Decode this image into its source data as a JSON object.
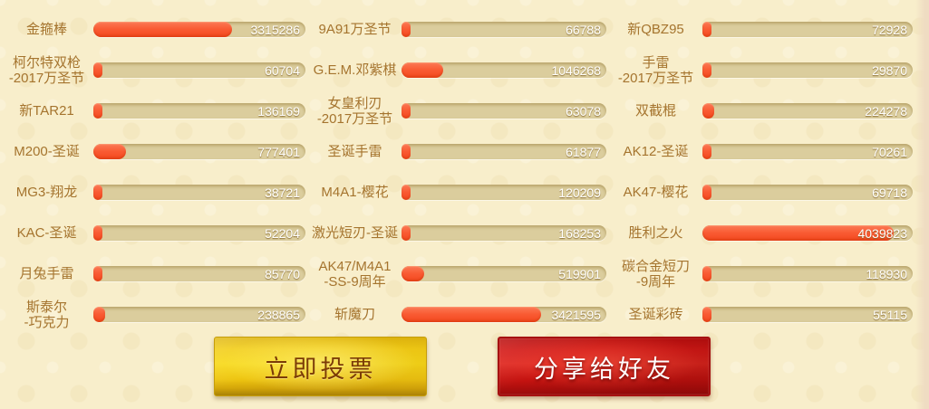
{
  "colors": {
    "background": "#f8eecb",
    "bar_track": "#dbcd9d",
    "bar_fill": "#f95a32",
    "label_text": "#a5742e",
    "count_text": "#ffffff",
    "vote_button_bg": "#f2cd15",
    "vote_button_text": "#7c3c05",
    "share_button_bg": "#d41a17",
    "share_button_text": "#ffffff"
  },
  "buttons": {
    "vote_label": "立即投票",
    "share_label": "分享给好友"
  },
  "columns": [
    {
      "items": [
        {
          "label": "金箍棒",
          "votes": "3315286",
          "fill_pct": 65.5
        },
        {
          "label": "柯尔特双枪\n-2017万圣节",
          "votes": "60704",
          "fill_pct": 3
        },
        {
          "label": "新TAR21",
          "votes": "136169",
          "fill_pct": 4
        },
        {
          "label": "M200-圣诞",
          "votes": "777401",
          "fill_pct": 15.4
        },
        {
          "label": "MG3-翔龙",
          "votes": "38721",
          "fill_pct": 3
        },
        {
          "label": "KAC-圣诞",
          "votes": "52204",
          "fill_pct": 3
        },
        {
          "label": "月兔手雷",
          "votes": "85770",
          "fill_pct": 3.5
        },
        {
          "label": "斯泰尔\n-巧克力",
          "votes": "238865",
          "fill_pct": 5.5
        }
      ]
    },
    {
      "items": [
        {
          "label": "9A91万圣节",
          "votes": "66788",
          "fill_pct": 3
        },
        {
          "label": "G.E.M.邓紫棋",
          "votes": "1046268",
          "fill_pct": 20.5
        },
        {
          "label": "女皇利刃\n-2017万圣节",
          "votes": "63078",
          "fill_pct": 3
        },
        {
          "label": "圣诞手雷",
          "votes": "61877",
          "fill_pct": 3
        },
        {
          "label": "M4A1-樱花",
          "votes": "120209",
          "fill_pct": 3.5
        },
        {
          "label": "激光短刃-圣诞",
          "votes": "168253",
          "fill_pct": 4.5
        },
        {
          "label": "AK47/M4A1\n-SS-9周年",
          "votes": "519901",
          "fill_pct": 11
        },
        {
          "label": "斩魔刀",
          "votes": "3421595",
          "fill_pct": 68
        }
      ]
    },
    {
      "items": [
        {
          "label": "新QBZ95",
          "votes": "72928",
          "fill_pct": 3.5
        },
        {
          "label": "手雷\n-2017万圣节",
          "votes": "29870",
          "fill_pct": 3
        },
        {
          "label": "双截棍",
          "votes": "224278",
          "fill_pct": 5.5
        },
        {
          "label": "AK12-圣诞",
          "votes": "70261",
          "fill_pct": 3.5
        },
        {
          "label": "AK47-樱花",
          "votes": "69718",
          "fill_pct": 3.5
        },
        {
          "label": "胜利之火",
          "votes": "4039823",
          "fill_pct": 91
        },
        {
          "label": "碳合金短刀\n-9周年",
          "votes": "118930",
          "fill_pct": 4
        },
        {
          "label": "圣诞彩砖",
          "votes": "55115",
          "fill_pct": 3
        }
      ]
    }
  ]
}
